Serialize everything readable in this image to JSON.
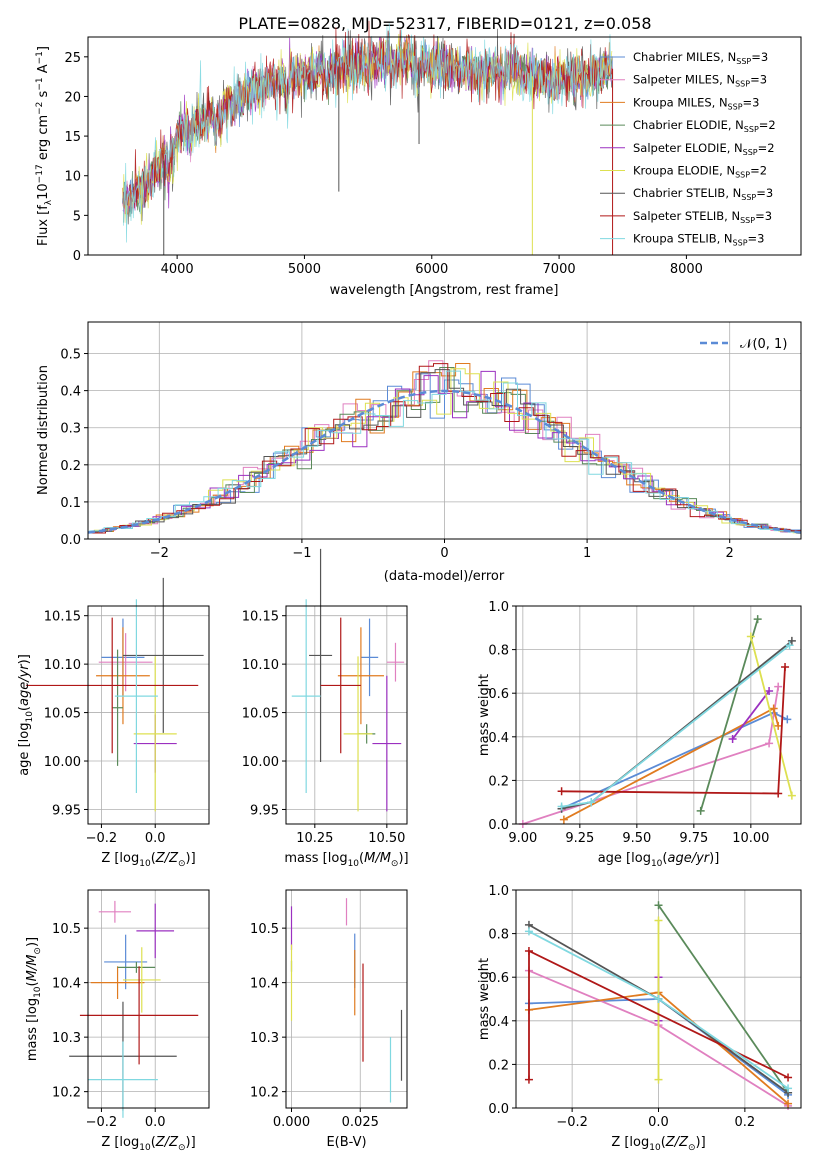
{
  "figure_title": "PLATE=0828, MJD=52317, FIBERID=0121, z=0.058",
  "series_colors": [
    "#5b8bd6",
    "#e080c0",
    "#e07b20",
    "#5a8a5a",
    "#9b30c0",
    "#dde050",
    "#555555",
    "#b01818",
    "#80d8e0"
  ],
  "chart_data": [
    {
      "id": "spectrum",
      "type": "line",
      "title": "PLATE=0828, MJD=52317, FIBERID=0121, z=0.058",
      "xlabel": "wavelength [Angstrom, rest frame]",
      "ylabel_parts": {
        "a": "Flux [f",
        "b": "λ",
        "c": "10",
        "d": "−17",
        "e": " erg cm",
        "f": "−2",
        "g": " s",
        "h": "−1",
        "i": " A",
        "j": "−1",
        "k": "]"
      },
      "xlim": [
        3300,
        8900
      ],
      "ylim": [
        0,
        27.5
      ],
      "xticks": [
        4000,
        5000,
        6000,
        7000,
        8000
      ],
      "yticks": [
        0,
        5,
        10,
        15,
        20,
        25
      ],
      "legend_position": "right",
      "legend": [
        {
          "main": "Chabrier MILES, N",
          "sub": "SSP",
          "tail": "=3"
        },
        {
          "main": "Salpeter MILES, N",
          "sub": "SSP",
          "tail": "=3"
        },
        {
          "main": "Kroupa MILES, N",
          "sub": "SSP",
          "tail": "=3"
        },
        {
          "main": "Chabrier ELODIE, N",
          "sub": "SSP",
          "tail": "=2"
        },
        {
          "main": "Salpeter ELODIE, N",
          "sub": "SSP",
          "tail": "=2"
        },
        {
          "main": "Kroupa ELODIE, N",
          "sub": "SSP",
          "tail": "=2"
        },
        {
          "main": "Chabrier STELIB, N",
          "sub": "SSP",
          "tail": "=3"
        },
        {
          "main": "Salpeter STELIB, N",
          "sub": "SSP",
          "tail": "=3"
        },
        {
          "main": "Kroupa STELIB, N",
          "sub": "SSP",
          "tail": "=3"
        }
      ],
      "continuum_knots": [
        [
          3600,
          7
        ],
        [
          3700,
          8
        ],
        [
          3800,
          10
        ],
        [
          3900,
          12
        ],
        [
          4000,
          15
        ],
        [
          4100,
          16
        ],
        [
          4200,
          17
        ],
        [
          4400,
          19
        ],
        [
          4600,
          21
        ],
        [
          4800,
          22
        ],
        [
          5000,
          23
        ],
        [
          5200,
          23.5
        ],
        [
          5400,
          24
        ],
        [
          5600,
          24.2
        ],
        [
          5800,
          24.5
        ],
        [
          6000,
          24
        ],
        [
          6200,
          23.5
        ],
        [
          6400,
          23
        ],
        [
          6600,
          23.5
        ],
        [
          6800,
          22.5
        ],
        [
          7000,
          22
        ],
        [
          7200,
          22.5
        ],
        [
          7300,
          23
        ],
        [
          7400,
          23.5
        ]
      ],
      "absorption_features": [
        [
          3933,
          3
        ],
        [
          3968,
          3
        ],
        [
          4102,
          2
        ],
        [
          4300,
          3
        ],
        [
          4340,
          2
        ],
        [
          4861,
          2
        ],
        [
          5175,
          3
        ],
        [
          5890,
          3
        ],
        [
          6563,
          1.5
        ]
      ],
      "spikes": [
        [
          3895,
          0
        ],
        [
          5270,
          8
        ],
        [
          5900,
          14
        ],
        [
          6790,
          0
        ],
        [
          7420,
          0
        ]
      ],
      "wavelength_range": [
        3570,
        7420
      ],
      "nominal_flux_range": [
        0,
        25
      ]
    },
    {
      "id": "residual-histogram",
      "type": "histogram",
      "xlabel": "(data-model)/error",
      "ylabel": "Normed distribution",
      "xlim": [
        -2.5,
        2.5
      ],
      "ylim": [
        0,
        0.585
      ],
      "xticks": [
        -2,
        -1,
        0,
        1,
        2
      ],
      "yticks": [
        0,
        0.1,
        0.2,
        0.3,
        0.4,
        0.5
      ],
      "bin_width": 0.1,
      "legend": "𝒩(0, 1)",
      "legend_position": "top-right",
      "reference_curve": {
        "name": "𝒩(0, 1)",
        "mean": 0,
        "sigma": 1
      }
    },
    {
      "id": "age-vs-metallicity",
      "type": "errorbar",
      "xlabel_parts": {
        "pre": "Z [log",
        "sub": "10",
        "mid": "(",
        "var": "Z/Z",
        "sun": "⊙",
        "post": ")]"
      },
      "ylabel_parts": {
        "pre": "age  [log",
        "sub": "10",
        "mid": "(",
        "var": "age/yr",
        "post": ")]"
      },
      "xlim": [
        -0.25,
        0.2
      ],
      "ylim": [
        9.935,
        10.16
      ],
      "xticks": [
        -0.2,
        0.0
      ],
      "xtick_labels": [
        "−0.2",
        "0.0"
      ],
      "yticks": [
        9.95,
        10.0,
        10.05,
        10.1,
        10.15
      ],
      "ytick_labels": [
        "9.95",
        "10.00",
        "10.05",
        "10.10",
        "10.15"
      ],
      "points": [
        {
          "x": -0.12,
          "y": 10.107,
          "xerr": 0.08,
          "yerr": 0.04
        },
        {
          "x": -0.11,
          "y": 10.102,
          "xerr": 0.1,
          "yerr": 0.03
        },
        {
          "x": -0.12,
          "y": 10.088,
          "xerr": 0.1,
          "yerr": 0.05
        },
        {
          "x": -0.14,
          "y": 10.055,
          "xerr": 0.02,
          "yerr": 0.06
        },
        {
          "x": -0.0,
          "y": 10.018,
          "xerr": 0.08,
          "yerr": 0.03
        },
        {
          "x": 0.0,
          "y": 10.028,
          "xerr": 0.08,
          "yerr": 0.08
        },
        {
          "x": 0.03,
          "y": 10.109,
          "xerr": 0.15,
          "yerr": 0.08
        },
        {
          "x": -0.16,
          "y": 10.078,
          "xerr": 0.32,
          "yerr": 0.07
        },
        {
          "x": -0.07,
          "y": 10.067,
          "xerr": 0.08,
          "yerr": 0.1
        }
      ]
    },
    {
      "id": "age-vs-mass",
      "type": "errorbar",
      "xlabel_parts": {
        "pre": "mass [log",
        "sub": "10",
        "mid": "(",
        "var": "M/M",
        "sun": "⊙",
        "post": ")]"
      },
      "xlim": [
        10.15,
        10.57
      ],
      "ylim": [
        9.935,
        10.16
      ],
      "xticks": [
        10.25,
        10.5
      ],
      "xtick_labels": [
        "10.25",
        "10.50"
      ],
      "yticks": [
        9.95,
        10.0,
        10.05,
        10.1,
        10.15
      ],
      "ytick_labels": [
        "9.95",
        "10.00",
        "10.05",
        "10.10",
        "10.15"
      ],
      "points": [
        {
          "x": 10.44,
          "y": 10.107,
          "xerr": 0.03,
          "yerr": 0.04
        },
        {
          "x": 10.53,
          "y": 10.102,
          "xerr": 0.03,
          "yerr": 0.02
        },
        {
          "x": 10.41,
          "y": 10.088,
          "xerr": 0.08,
          "yerr": 0.05
        },
        {
          "x": 10.43,
          "y": 10.028,
          "xerr": 0.03,
          "yerr": 0.01
        },
        {
          "x": 10.5,
          "y": 10.018,
          "xerr": 0.05,
          "yerr": 0.07
        },
        {
          "x": 10.4,
          "y": 10.028,
          "xerr": 0.05,
          "yerr": 0.08
        },
        {
          "x": 10.27,
          "y": 10.109,
          "xerr": 0.04,
          "yerr": 0.11
        },
        {
          "x": 10.34,
          "y": 10.078,
          "xerr": 0.07,
          "yerr": 0.07
        },
        {
          "x": 10.22,
          "y": 10.067,
          "xerr": 0.05,
          "yerr": 0.1
        }
      ]
    },
    {
      "id": "massweight-vs-age",
      "type": "line",
      "xlabel_parts": {
        "pre": "age  [log",
        "sub": "10",
        "mid": "(",
        "var": "age/yr",
        "post": ")]"
      },
      "ylabel": "mass weight",
      "xlim": [
        8.97,
        10.22
      ],
      "ylim": [
        0,
        1.0
      ],
      "xticks": [
        9.0,
        9.25,
        9.5,
        9.75,
        10.0
      ],
      "xtick_labels": [
        "9.00",
        "9.25",
        "9.50",
        "9.75",
        "10.00"
      ],
      "yticks": [
        0,
        0.2,
        0.4,
        0.6,
        0.8,
        1.0
      ],
      "ytick_labels": [
        "0.0",
        "0.2",
        "0.4",
        "0.6",
        "0.8",
        "1.0"
      ],
      "series": [
        {
          "points": [
            [
              9.17,
              0.07
            ],
            [
              10.1,
              0.51
            ],
            [
              10.16,
              0.48
            ]
          ]
        },
        {
          "points": [
            [
              9.0,
              0.0
            ],
            [
              10.08,
              0.37
            ],
            [
              10.12,
              0.63
            ]
          ]
        },
        {
          "points": [
            [
              9.18,
              0.02
            ],
            [
              10.1,
              0.53
            ],
            [
              10.12,
              0.45
            ]
          ]
        },
        {
          "points": [
            [
              9.78,
              0.06
            ],
            [
              10.03,
              0.94
            ]
          ]
        },
        {
          "points": [
            [
              9.92,
              0.39
            ],
            [
              10.08,
              0.61
            ]
          ]
        },
        {
          "points": [
            [
              10.0,
              0.86
            ],
            [
              10.18,
              0.13
            ]
          ]
        },
        {
          "points": [
            [
              9.17,
              0.07
            ],
            [
              9.3,
              0.1
            ],
            [
              10.18,
              0.84
            ]
          ]
        },
        {
          "points": [
            [
              9.17,
              0.15
            ],
            [
              10.12,
              0.14
            ],
            [
              10.15,
              0.72
            ]
          ]
        },
        {
          "points": [
            [
              9.17,
              0.08
            ],
            [
              9.3,
              0.1
            ],
            [
              10.17,
              0.82
            ]
          ]
        }
      ]
    },
    {
      "id": "mass-vs-metallicity",
      "type": "errorbar",
      "xlabel_parts": {
        "pre": "Z [log",
        "sub": "10",
        "mid": "(",
        "var": "Z/Z",
        "sun": "⊙",
        "post": ")]"
      },
      "ylabel_parts": {
        "pre": "mass [log",
        "sub": "10",
        "mid": "(",
        "var": "M/M",
        "sun": "⊙",
        "post": ")]"
      },
      "xlim": [
        -0.25,
        0.2
      ],
      "ylim": [
        10.17,
        10.57
      ],
      "xticks": [
        -0.2,
        0.0
      ],
      "xtick_labels": [
        "−0.2",
        "0.0"
      ],
      "yticks": [
        10.2,
        10.3,
        10.4,
        10.5
      ],
      "ytick_labels": [
        "10.2",
        "10.3",
        "10.4",
        "10.5"
      ],
      "points": [
        {
          "x": -0.11,
          "y": 10.438,
          "xerr": 0.08,
          "yerr": 0.05
        },
        {
          "x": -0.15,
          "y": 10.53,
          "xerr": 0.06,
          "yerr": 0.02
        },
        {
          "x": -0.14,
          "y": 10.4,
          "xerr": 0.1,
          "yerr": 0.03
        },
        {
          "x": -0.07,
          "y": 10.428,
          "xerr": 0.07,
          "yerr": 0.01
        },
        {
          "x": 0.0,
          "y": 10.495,
          "xerr": 0.07,
          "yerr": 0.05
        },
        {
          "x": -0.05,
          "y": 10.405,
          "xerr": 0.07,
          "yerr": 0.06
        },
        {
          "x": -0.12,
          "y": 10.265,
          "xerr": 0.2,
          "yerr": 0.1
        },
        {
          "x": -0.06,
          "y": 10.34,
          "xerr": 0.22,
          "yerr": 0.09
        },
        {
          "x": -0.12,
          "y": 10.222,
          "xerr": 0.13,
          "yerr": 0.07
        }
      ]
    },
    {
      "id": "mass-vs-ebv",
      "type": "errorbar",
      "xlabel": "E(B-V)",
      "xlim": [
        -0.002,
        0.042
      ],
      "ylim": [
        10.17,
        10.57
      ],
      "xticks": [
        0.0,
        0.025
      ],
      "xtick_labels": [
        "0.000",
        "0.025"
      ],
      "yticks": [
        10.2,
        10.3,
        10.4,
        10.5
      ],
      "ytick_labels": [
        "10.2",
        "10.3",
        "10.4",
        "10.5"
      ],
      "points": [
        {
          "x": 0.023,
          "y": 10.44,
          "xerr": 0,
          "yerr": 0.05
        },
        {
          "x": 0.02,
          "y": 10.53,
          "xerr": 0,
          "yerr": 0.025
        },
        {
          "x": 0.023,
          "y": 10.4,
          "xerr": 0,
          "yerr": 0.06
        },
        {
          "x": 0.0,
          "y": 10.43,
          "xerr": 0,
          "yerr": 0.01
        },
        {
          "x": 0.0,
          "y": 10.5,
          "xerr": 0,
          "yerr": 0.04
        },
        {
          "x": 0.0,
          "y": 10.4,
          "xerr": 0,
          "yerr": 0.07
        },
        {
          "x": 0.04,
          "y": 10.285,
          "xerr": 0,
          "yerr": 0.065
        },
        {
          "x": 0.026,
          "y": 10.345,
          "xerr": 0,
          "yerr": 0.09
        },
        {
          "x": 0.036,
          "y": 10.24,
          "xerr": 0,
          "yerr": 0.06
        }
      ]
    },
    {
      "id": "massweight-vs-metallicity",
      "type": "line",
      "xlabel_parts": {
        "pre": "Z [log",
        "sub": "10",
        "mid": "(",
        "var": "Z/Z",
        "sun": "⊙",
        "post": ")]"
      },
      "ylabel": "mass weight",
      "xlim": [
        -0.33,
        0.33
      ],
      "ylim": [
        0,
        1.0
      ],
      "xticks": [
        -0.2,
        0.0,
        0.2
      ],
      "xtick_labels": [
        "−0.2",
        "0.0",
        "0.2"
      ],
      "yticks": [
        0,
        0.2,
        0.4,
        0.6,
        0.8,
        1.0
      ],
      "ytick_labels": [
        "0.0",
        "0.2",
        "0.4",
        "0.6",
        "0.8",
        "1.0"
      ],
      "series": [
        {
          "points": [
            [
              -0.3,
              0.48
            ],
            [
              0.0,
              0.5
            ],
            [
              0.3,
              0.06
            ]
          ]
        },
        {
          "points": [
            [
              -0.3,
              0.63
            ],
            [
              0.0,
              0.38
            ],
            [
              0.3,
              0.01
            ]
          ]
        },
        {
          "points": [
            [
              -0.3,
              0.45
            ],
            [
              0.0,
              0.53
            ],
            [
              0.3,
              0.02
            ]
          ]
        },
        {
          "points": [
            [
              0.0,
              0.93
            ],
            [
              0.3,
              0.07
            ]
          ]
        },
        {
          "points": [
            [
              0.0,
              0.6
            ],
            [
              0.0,
              0.4
            ]
          ]
        },
        {
          "points": [
            [
              0.0,
              0.86
            ],
            [
              0.0,
              0.13
            ]
          ]
        },
        {
          "points": [
            [
              -0.3,
              0.84
            ],
            [
              0.0,
              0.5
            ],
            [
              0.3,
              0.07
            ]
          ]
        },
        {
          "points": [
            [
              -0.3,
              0.13
            ],
            [
              -0.3,
              0.72
            ],
            [
              0.3,
              0.14
            ]
          ]
        },
        {
          "points": [
            [
              -0.3,
              0.81
            ],
            [
              0.0,
              0.5
            ],
            [
              0.3,
              0.09
            ]
          ]
        }
      ]
    }
  ]
}
